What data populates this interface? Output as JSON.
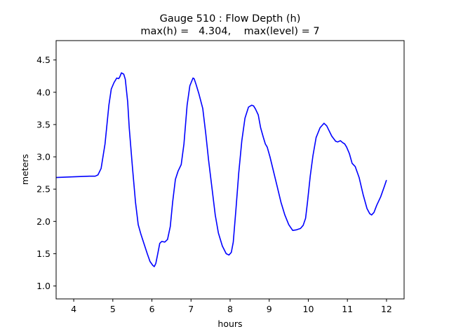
{
  "chart_data": {
    "type": "line",
    "title_lines": [
      "Gauge 510 : Flow Depth (h)",
      "max(h) =   4.304,    max(level) = 7"
    ],
    "xlabel": "hours",
    "ylabel": "meters",
    "xlim": [
      3.55,
      12.45
    ],
    "ylim": [
      0.8,
      4.8
    ],
    "xticks": [
      4,
      5,
      6,
      7,
      8,
      9,
      10,
      11,
      12
    ],
    "yticks": [
      1.0,
      1.5,
      2.0,
      2.5,
      3.0,
      3.5,
      4.0,
      4.5
    ],
    "ytick_labels": [
      "1.0",
      "1.5",
      "2.0",
      "2.5",
      "3.0",
      "3.5",
      "4.0",
      "4.5"
    ],
    "grid": false,
    "series": [
      {
        "color": "#0000ff",
        "x": [
          3.55,
          4.0,
          4.4,
          4.55,
          4.62,
          4.7,
          4.8,
          4.9,
          4.96,
          5.03,
          5.1,
          5.15,
          5.18,
          5.22,
          5.28,
          5.32,
          5.38,
          5.42,
          5.5,
          5.58,
          5.65,
          5.72,
          5.8,
          5.88,
          5.95,
          6.02,
          6.06,
          6.1,
          6.15,
          6.2,
          6.25,
          6.33,
          6.4,
          6.47,
          6.53,
          6.6,
          6.67,
          6.75,
          6.82,
          6.9,
          6.97,
          7.05,
          7.08,
          7.13,
          7.2,
          7.3,
          7.38,
          7.45,
          7.55,
          7.62,
          7.7,
          7.8,
          7.9,
          7.97,
          8.03,
          8.08,
          8.15,
          8.22,
          8.3,
          8.38,
          8.47,
          8.55,
          8.6,
          8.65,
          8.72,
          8.78,
          8.85,
          8.9,
          8.95,
          9.02,
          9.1,
          9.2,
          9.3,
          9.4,
          9.5,
          9.6,
          9.7,
          9.8,
          9.87,
          9.93,
          9.98,
          10.05,
          10.12,
          10.2,
          10.3,
          10.4,
          10.47,
          10.52,
          10.6,
          10.7,
          10.75,
          10.82,
          10.88,
          10.93,
          10.98,
          11.05,
          11.12,
          11.2,
          11.3,
          11.4,
          11.5,
          11.57,
          11.62,
          11.68,
          11.75,
          11.85,
          11.95,
          12.0
        ],
        "y": [
          2.68,
          2.69,
          2.7,
          2.7,
          2.72,
          2.82,
          3.2,
          3.8,
          4.05,
          4.15,
          4.22,
          4.21,
          4.24,
          4.3,
          4.28,
          4.2,
          3.85,
          3.45,
          2.85,
          2.3,
          1.95,
          1.8,
          1.65,
          1.5,
          1.38,
          1.32,
          1.3,
          1.35,
          1.5,
          1.66,
          1.69,
          1.68,
          1.72,
          1.92,
          2.3,
          2.65,
          2.78,
          2.88,
          3.2,
          3.8,
          4.1,
          4.22,
          4.21,
          4.12,
          3.98,
          3.75,
          3.35,
          2.95,
          2.45,
          2.1,
          1.82,
          1.62,
          1.5,
          1.48,
          1.52,
          1.68,
          2.2,
          2.75,
          3.25,
          3.6,
          3.77,
          3.8,
          3.79,
          3.74,
          3.65,
          3.45,
          3.3,
          3.2,
          3.15,
          3.0,
          2.8,
          2.55,
          2.3,
          2.1,
          1.95,
          1.86,
          1.87,
          1.89,
          1.94,
          2.05,
          2.3,
          2.7,
          3.02,
          3.3,
          3.45,
          3.52,
          3.48,
          3.42,
          3.32,
          3.24,
          3.23,
          3.25,
          3.22,
          3.2,
          3.15,
          3.05,
          2.9,
          2.85,
          2.68,
          2.42,
          2.2,
          2.12,
          2.1,
          2.14,
          2.25,
          2.38,
          2.55,
          2.64
        ]
      }
    ]
  }
}
